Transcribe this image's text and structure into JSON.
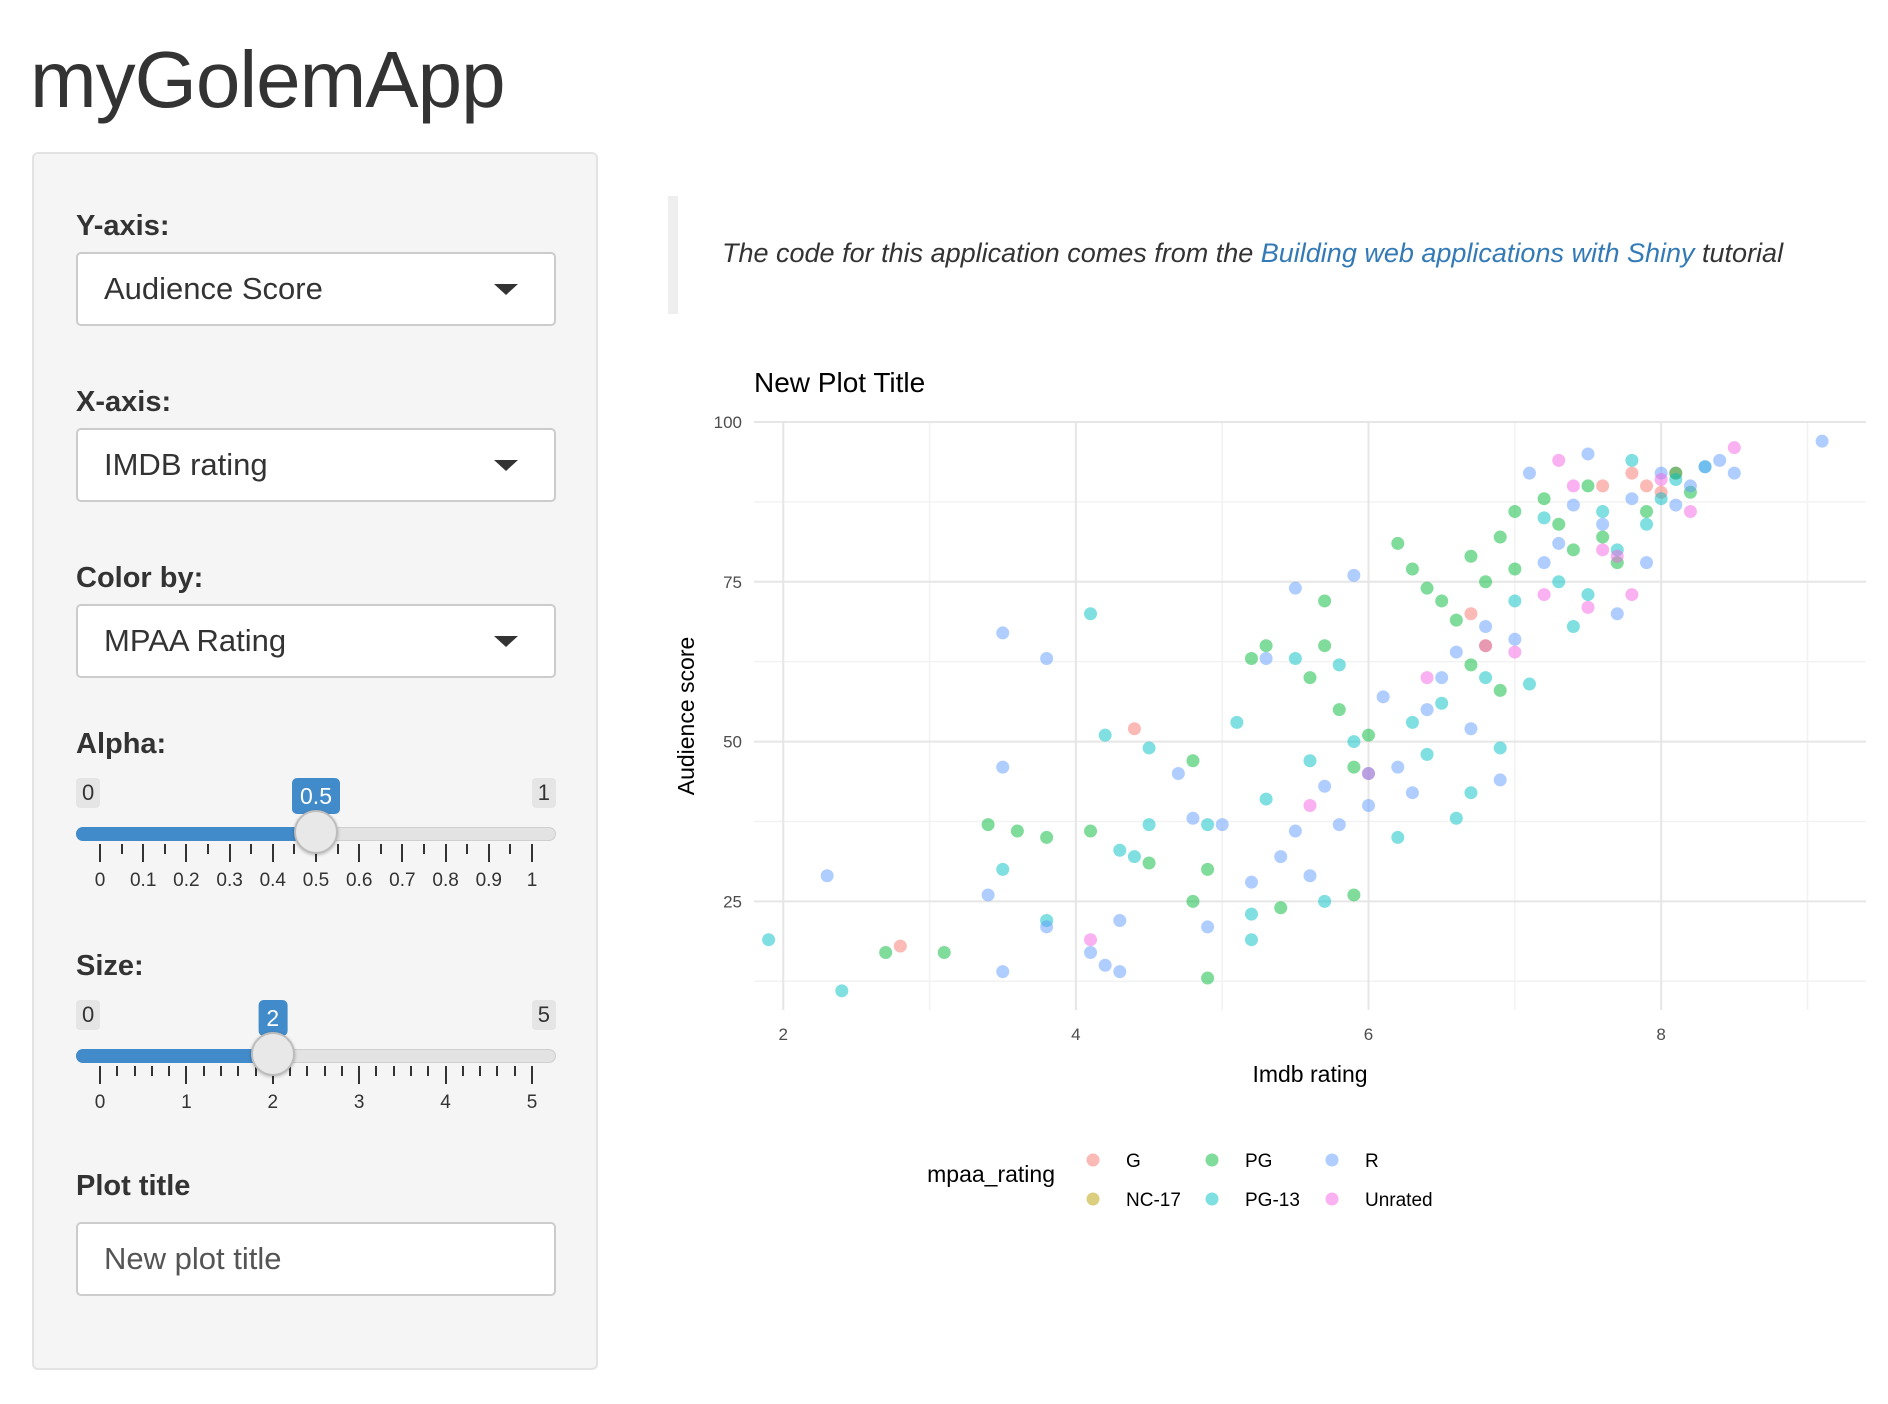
{
  "app": {
    "title": "myGolemApp"
  },
  "sidebar": {
    "yaxis": {
      "label": "Y-axis:",
      "value": "Audience Score"
    },
    "xaxis": {
      "label": "X-axis:",
      "value": "IMDB rating"
    },
    "color": {
      "label": "Color by:",
      "value": "MPAA Rating"
    },
    "alpha": {
      "label": "Alpha:",
      "min": "0",
      "max": "1",
      "value": "0.5",
      "value_fraction": 0.5,
      "tick_labels": [
        "0",
        "0.1",
        "0.2",
        "0.3",
        "0.4",
        "0.5",
        "0.6",
        "0.7",
        "0.8",
        "0.9",
        "1"
      ]
    },
    "size": {
      "label": "Size:",
      "min": "0",
      "max": "5",
      "value": "2",
      "value_fraction": 0.4,
      "tick_labels": [
        "0",
        "1",
        "2",
        "3",
        "4",
        "5"
      ]
    },
    "plot_title": {
      "label": "Plot title",
      "value": "New plot title"
    }
  },
  "main": {
    "quote": {
      "prefix": "The code for this application comes from the ",
      "link": "Building web applications with Shiny",
      "suffix": " tutorial"
    }
  },
  "colors": {
    "accent": "#428bca",
    "link": "#337ab7"
  },
  "chart_data": {
    "type": "scatter",
    "title": "New Plot Title",
    "xlabel": "Imdb rating",
    "ylabel": "Audience score",
    "xlim": [
      1.8,
      9.4
    ],
    "ylim": [
      8,
      100
    ],
    "xticks": [
      2,
      4,
      6,
      8
    ],
    "yticks": [
      25,
      50,
      75,
      100
    ],
    "grid": true,
    "legend": {
      "title": "mpaa_rating",
      "position": "bottom"
    },
    "series": [
      {
        "name": "G",
        "color": "#F8766D",
        "points": [
          [
            2.8,
            18
          ],
          [
            4.4,
            52
          ],
          [
            6.7,
            70
          ],
          [
            7.6,
            90
          ],
          [
            7.8,
            92
          ],
          [
            7.9,
            90
          ],
          [
            8.1,
            92
          ],
          [
            8.0,
            89
          ]
        ]
      },
      {
        "name": "NC-17",
        "color": "#B79F00",
        "points": [
          [
            6.8,
            65
          ]
        ]
      },
      {
        "name": "PG",
        "color": "#00BA38",
        "points": [
          [
            2.7,
            17
          ],
          [
            3.1,
            17
          ],
          [
            3.4,
            37
          ],
          [
            3.6,
            36
          ],
          [
            3.8,
            35
          ],
          [
            4.1,
            36
          ],
          [
            4.5,
            31
          ],
          [
            4.8,
            47
          ],
          [
            4.8,
            25
          ],
          [
            4.9,
            30
          ],
          [
            4.9,
            13
          ],
          [
            5.2,
            63
          ],
          [
            5.3,
            65
          ],
          [
            5.4,
            24
          ],
          [
            5.6,
            60
          ],
          [
            5.7,
            72
          ],
          [
            5.7,
            65
          ],
          [
            5.8,
            55
          ],
          [
            5.9,
            26
          ],
          [
            5.9,
            46
          ],
          [
            6.0,
            51
          ],
          [
            6.2,
            81
          ],
          [
            6.3,
            77
          ],
          [
            6.4,
            74
          ],
          [
            6.5,
            72
          ],
          [
            6.6,
            69
          ],
          [
            6.7,
            62
          ],
          [
            6.7,
            79
          ],
          [
            6.8,
            75
          ],
          [
            6.9,
            82
          ],
          [
            6.9,
            58
          ],
          [
            7.0,
            86
          ],
          [
            7.0,
            77
          ],
          [
            7.2,
            88
          ],
          [
            7.3,
            84
          ],
          [
            7.4,
            80
          ],
          [
            7.5,
            90
          ],
          [
            7.6,
            82
          ],
          [
            7.7,
            78
          ],
          [
            7.9,
            86
          ],
          [
            8.1,
            92
          ],
          [
            8.2,
            89
          ]
        ]
      },
      {
        "name": "PG-13",
        "color": "#00BFC4",
        "points": [
          [
            1.9,
            19
          ],
          [
            2.4,
            11
          ],
          [
            3.5,
            30
          ],
          [
            3.8,
            22
          ],
          [
            4.1,
            70
          ],
          [
            4.2,
            51
          ],
          [
            4.3,
            33
          ],
          [
            4.4,
            32
          ],
          [
            4.5,
            49
          ],
          [
            4.5,
            37
          ],
          [
            4.9,
            37
          ],
          [
            5.1,
            53
          ],
          [
            5.2,
            23
          ],
          [
            5.2,
            19
          ],
          [
            5.3,
            41
          ],
          [
            5.5,
            63
          ],
          [
            5.6,
            47
          ],
          [
            5.7,
            25
          ],
          [
            5.8,
            62
          ],
          [
            5.9,
            50
          ],
          [
            6.0,
            45
          ],
          [
            6.2,
            35
          ],
          [
            6.3,
            53
          ],
          [
            6.4,
            48
          ],
          [
            6.5,
            56
          ],
          [
            6.6,
            38
          ],
          [
            6.7,
            42
          ],
          [
            6.8,
            60
          ],
          [
            6.9,
            49
          ],
          [
            7.0,
            72
          ],
          [
            7.1,
            59
          ],
          [
            7.2,
            85
          ],
          [
            7.3,
            75
          ],
          [
            7.4,
            68
          ],
          [
            7.5,
            73
          ],
          [
            7.6,
            86
          ],
          [
            7.7,
            80
          ],
          [
            7.8,
            94
          ],
          [
            7.9,
            84
          ],
          [
            8.0,
            88
          ],
          [
            8.1,
            91
          ],
          [
            8.3,
            93
          ]
        ]
      },
      {
        "name": "R",
        "color": "#619CFF",
        "points": [
          [
            2.3,
            29
          ],
          [
            3.4,
            26
          ],
          [
            3.5,
            67
          ],
          [
            3.5,
            46
          ],
          [
            3.5,
            14
          ],
          [
            3.8,
            63
          ],
          [
            3.8,
            21
          ],
          [
            4.1,
            17
          ],
          [
            4.2,
            15
          ],
          [
            4.3,
            14
          ],
          [
            4.3,
            22
          ],
          [
            4.7,
            45
          ],
          [
            4.8,
            38
          ],
          [
            4.9,
            21
          ],
          [
            5.0,
            37
          ],
          [
            5.2,
            28
          ],
          [
            5.3,
            63
          ],
          [
            5.4,
            32
          ],
          [
            5.5,
            36
          ],
          [
            5.5,
            74
          ],
          [
            5.6,
            29
          ],
          [
            5.7,
            43
          ],
          [
            5.8,
            37
          ],
          [
            5.9,
            76
          ],
          [
            6.0,
            40
          ],
          [
            6.1,
            57
          ],
          [
            6.2,
            46
          ],
          [
            6.3,
            42
          ],
          [
            6.4,
            55
          ],
          [
            6.5,
            60
          ],
          [
            6.6,
            64
          ],
          [
            6.7,
            52
          ],
          [
            6.8,
            68
          ],
          [
            6.9,
            44
          ],
          [
            7.0,
            66
          ],
          [
            7.1,
            92
          ],
          [
            7.2,
            78
          ],
          [
            7.3,
            81
          ],
          [
            7.4,
            87
          ],
          [
            7.5,
            95
          ],
          [
            7.6,
            84
          ],
          [
            7.7,
            70
          ],
          [
            7.8,
            88
          ],
          [
            7.9,
            78
          ],
          [
            8.0,
            92
          ],
          [
            8.1,
            87
          ],
          [
            8.2,
            90
          ],
          [
            8.3,
            93
          ],
          [
            8.4,
            94
          ],
          [
            8.5,
            92
          ],
          [
            9.1,
            97
          ]
        ]
      },
      {
        "name": "Unrated",
        "color": "#F564E3",
        "points": [
          [
            4.1,
            19
          ],
          [
            5.6,
            40
          ],
          [
            6.0,
            45
          ],
          [
            6.4,
            60
          ],
          [
            6.8,
            65
          ],
          [
            7.0,
            64
          ],
          [
            7.2,
            73
          ],
          [
            7.3,
            94
          ],
          [
            7.4,
            90
          ],
          [
            7.5,
            71
          ],
          [
            7.6,
            80
          ],
          [
            7.7,
            79
          ],
          [
            7.8,
            73
          ],
          [
            8.0,
            91
          ],
          [
            8.2,
            86
          ],
          [
            8.5,
            96
          ]
        ]
      }
    ]
  }
}
